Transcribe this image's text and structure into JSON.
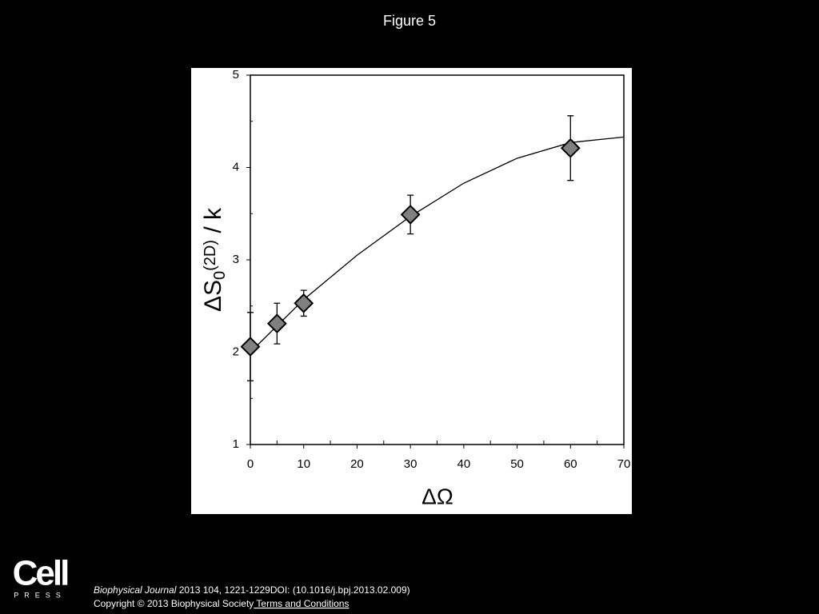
{
  "slide_title": "Figure 5",
  "chart_data": {
    "type": "scatter",
    "xlabel": "ΔΩ",
    "ylabel": {
      "main": "ΔS",
      "sub": "0",
      "sup": "(2D)",
      "rest": " / k"
    },
    "xlim": [
      0,
      70
    ],
    "xticks": [
      0,
      10,
      20,
      30,
      40,
      50,
      60,
      70
    ],
    "xminorticks": [
      5,
      15,
      25,
      35,
      45,
      55,
      65
    ],
    "ylim": [
      1,
      5
    ],
    "yticks": [
      1,
      2,
      3,
      4,
      5
    ],
    "yminorticks": [
      1.5,
      2.5,
      3.5,
      4.5
    ],
    "series": [
      {
        "color": "#808080",
        "x": [
          0,
          5,
          10,
          30,
          60
        ],
        "values": [
          2.06,
          2.31,
          2.53,
          3.49,
          4.21
        ],
        "errors": [
          0.37,
          0.22,
          0.14,
          0.21,
          0.35
        ]
      },
      {
        "color": "#000000",
        "x": [
          0,
          10,
          20,
          30,
          40,
          50,
          60,
          70
        ],
        "values": [
          2.0,
          2.57,
          3.05,
          3.47,
          3.83,
          4.1,
          4.27,
          4.33
        ]
      }
    ]
  },
  "logo": {
    "name": "Cell",
    "sub": "PRESS"
  },
  "citation": {
    "journal": "Biophysical Journal",
    "details": " 2013 104, 1221-1229DOI: (10.1016/j.bpj.2013.02.009)"
  },
  "copyright": {
    "text": "Copyright © 2013 Biophysical Society",
    "link": " Terms and Conditions"
  }
}
